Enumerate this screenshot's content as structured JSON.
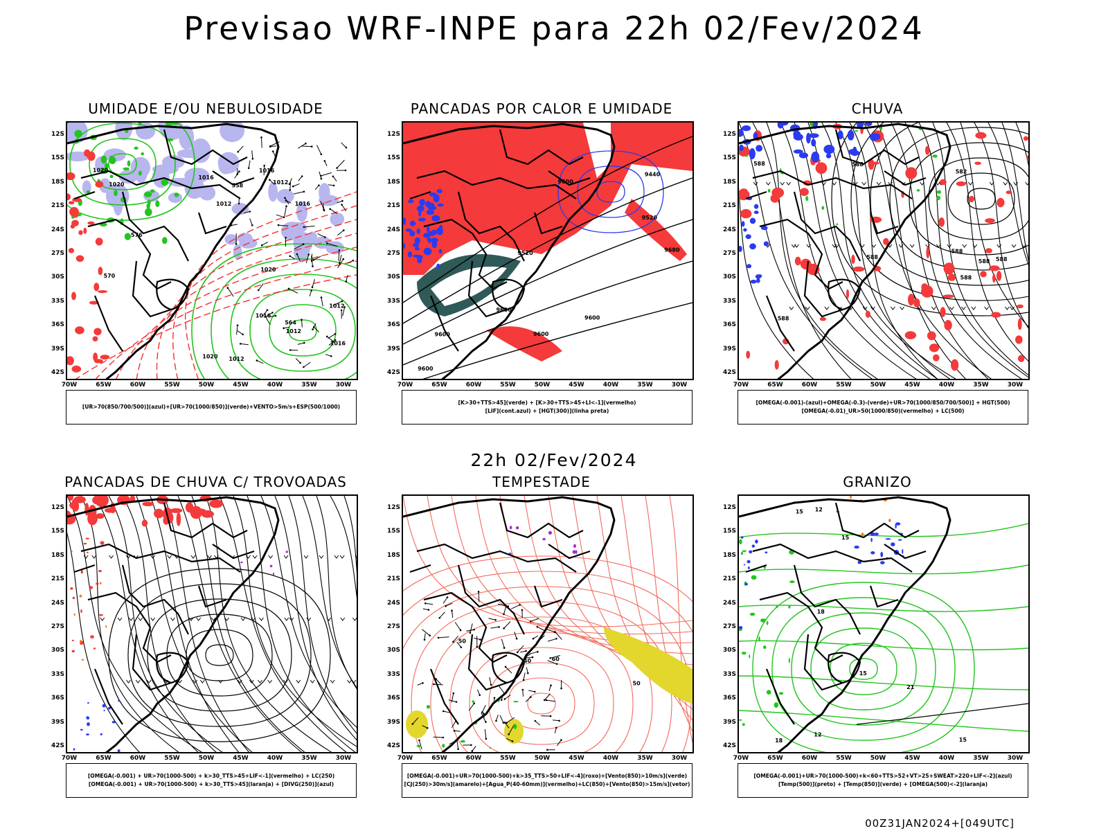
{
  "title": "Previsao WRF-INPE  para 22h 02/Fev/2024",
  "subtitle": "22h 02/Fev/2024",
  "footer": "00Z31JAN2024+[049UTC]",
  "lat_labels": [
    "12S",
    "15S",
    "18S",
    "21S",
    "24S",
    "27S",
    "30S",
    "33S",
    "36S",
    "39S",
    "42S"
  ],
  "lon_labels": [
    "70W",
    "65W",
    "60W",
    "55W",
    "50W",
    "45W",
    "40W",
    "35W",
    "30W"
  ],
  "colors": {
    "red": "#f43a3a",
    "green": "#23c41e",
    "blue": "#2a3bf0",
    "lavender": "#b8b6ee",
    "teal": "#2f5a58",
    "yellow": "#e3d62d",
    "orange": "#f07a20",
    "purple": "#a12ed0",
    "lightred": "#f26a5c"
  },
  "panels": [
    {
      "title": "UMIDADE E/OU NEBULOSIDADE",
      "legend": [
        "[UR>70(850/700/500)](azul)+[UR>70(1000/850)](verde)+VENTO>5m/s+ESP(500/1000)"
      ],
      "contour_labels": [
        "1012",
        "1012",
        "1020",
        "1016",
        "1020",
        "1016",
        "1012",
        "1016",
        "576",
        "570",
        "564",
        "558",
        "1020",
        "1020",
        "1016",
        "1012",
        "1012",
        "1016"
      ]
    },
    {
      "title": "PANCADAS POR CALOR E UMIDADE",
      "legend": [
        "[K>30+TTS>45](verde) + [K>30+TTS>45+LI<-1](vermelho)",
        "[LIF](cont.azul) + [HGT(300)](linha preta)"
      ],
      "contour_labels": [
        "9680",
        "9600",
        "9600",
        "9600",
        "9600",
        "9520",
        "9440",
        "9520",
        "9600",
        "9600"
      ]
    },
    {
      "title": "CHUVA",
      "legend": [
        "[OMEGA(-0.001)-(azul)+OMEGA(-0.3)-(verde)+UR>70(1000/850/700/500)] + HGT(500)",
        "[OMEGA(-0.01)_UR>50(1000/850)(vermelho) + LC(500)"
      ],
      "contour_labels": [
        "588",
        "588",
        "588",
        "588",
        "588",
        "588",
        "588",
        "582",
        "588"
      ]
    },
    {
      "title": "PANCADAS DE CHUVA C/ TROVOADAS",
      "legend": [
        "[OMEGA(-0.001) + UR>70(1000-500) + k>30_TTS>45+LIF<-1](vermelho) + LC(250)",
        "[OMEGA(-0.001) + UR>70(1000-500) + k>30_TTS>45](laranja) + [DIVG(250)](azul)"
      ],
      "contour_labels": []
    },
    {
      "title": "TEMPESTADE",
      "legend": [
        "[OMEGA(-0.001)+UR>70(1000-500)+k>35_TTS>50+LIF<-4](roxo)+[Vento(850)>10m/s](verde)",
        "[CJ(250)>30m/s](amarelo)+[Agua_P(40-60mm)](vermelho)+LC(850)+[Vento(850)>15m/s](vetor)"
      ],
      "contour_labels": [
        "50",
        "40",
        "50",
        "60"
      ]
    },
    {
      "title": "GRANIZO",
      "legend": [
        "[OMEGA(-0.001)+UR>70(1000-500)+k<60+TTS>52+VT>25+SWEAT>220+LIF<-2](azul)",
        "[Temp(500)](preto) + [Temp(850)](verde) + [OMEGA(500)<-2](laranja)"
      ],
      "contour_labels": [
        "21",
        "15",
        "18",
        "15",
        "12",
        "15",
        "15",
        "18",
        "12"
      ]
    }
  ]
}
